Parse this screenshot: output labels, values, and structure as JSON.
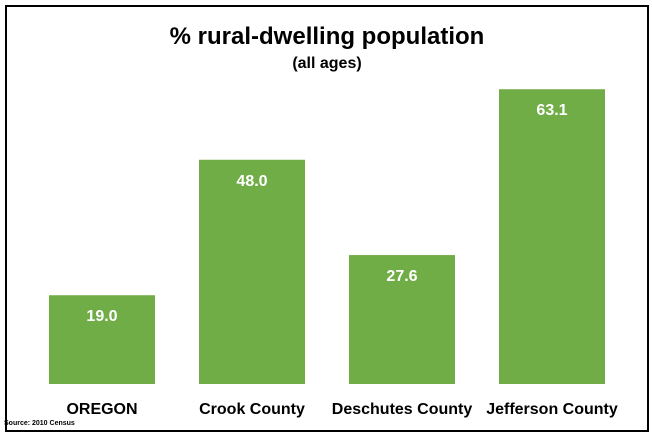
{
  "chart_data": {
    "type": "bar",
    "title": "% rural-dwelling population",
    "subtitle": "(all ages)",
    "categories": [
      "OREGON",
      "Crook County",
      "Deschutes County",
      "Jefferson County"
    ],
    "values": [
      19.0,
      48.0,
      27.6,
      63.1
    ],
    "value_labels": [
      "19.0",
      "48.0",
      "27.6",
      "63.1"
    ],
    "ylim": [
      0,
      70
    ],
    "grid": false,
    "legend": "none",
    "bar_color": "#70ad47",
    "label_color": "#ffffff",
    "source": "Source: 2010 Census"
  }
}
